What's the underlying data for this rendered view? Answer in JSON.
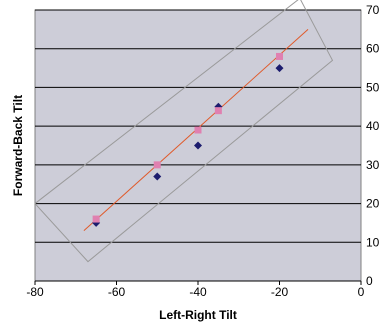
{
  "chart_data": {
    "type": "scatter",
    "title": "",
    "xlabel": "Left-Right Tilt",
    "ylabel": "Forward-Back Tilt",
    "xlim": [
      -80,
      0
    ],
    "ylim": [
      0,
      70
    ],
    "x_ticks": [
      "-80",
      "-60",
      "-40",
      "-20",
      "0"
    ],
    "y_ticks": [
      "0",
      "10",
      "20",
      "30",
      "40",
      "50",
      "60",
      "70"
    ],
    "y_axis_position": "right",
    "grid": "horizontal",
    "legend": "none",
    "series": [
      {
        "marker": "diamond",
        "color": "#1c1c6e",
        "points": [
          [
            -65,
            15
          ],
          [
            -50,
            27
          ],
          [
            -40,
            35
          ],
          [
            -35,
            45
          ],
          [
            -20,
            55
          ]
        ]
      },
      {
        "marker": "square",
        "color": "#e080b0",
        "points": [
          [
            -65,
            16
          ],
          [
            -50,
            30
          ],
          [
            -40,
            39
          ],
          [
            -35,
            44
          ],
          [
            -20,
            58
          ]
        ]
      }
    ],
    "trendline": {
      "color": "#e05a2a",
      "from": [
        -68,
        13
      ],
      "to": [
        -13,
        65
      ]
    },
    "colors": {
      "plot_background": "#cdcdd8",
      "gridline": "#000000",
      "ellipse_box": "#9a9a9a"
    }
  }
}
